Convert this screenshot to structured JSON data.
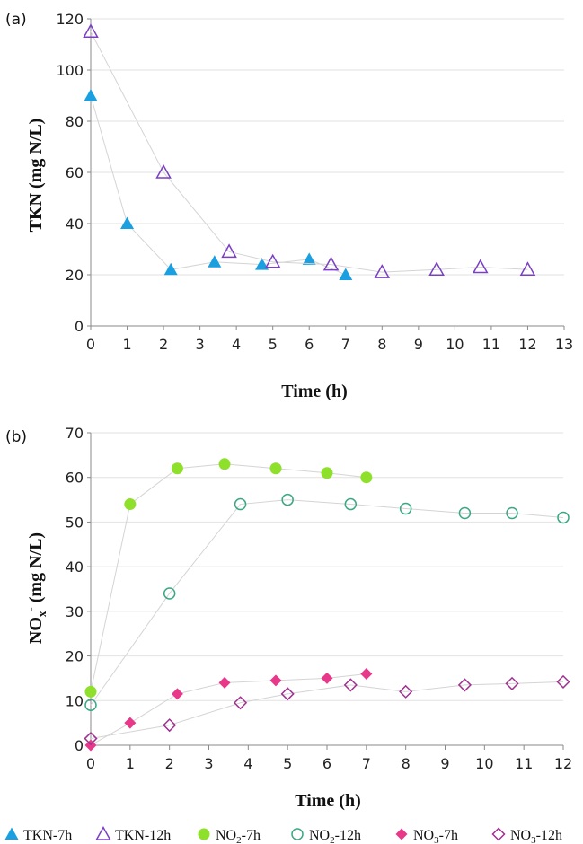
{
  "chart_data": [
    {
      "panel_label": "(a)",
      "type": "scatter",
      "xlabel": "Time (h)",
      "ylabel": "TKN (mg N/L)",
      "xlim": [
        0,
        13
      ],
      "ylim": [
        0,
        120
      ],
      "xticks": [
        "0",
        "1",
        "2",
        "3",
        "4",
        "5",
        "6",
        "7",
        "8",
        "9",
        "10",
        "11",
        "12",
        "13"
      ],
      "yticks": [
        "0",
        "20",
        "40",
        "60",
        "80",
        "100",
        "120"
      ],
      "grid": "horizontal",
      "series": [
        {
          "name": "TKN-7h",
          "marker": "triangle-filled",
          "color": "#1a9fe0",
          "x": [
            0,
            1,
            2.2,
            3.4,
            4.7,
            6,
            7
          ],
          "y": [
            90,
            40,
            22,
            25,
            24,
            26,
            20
          ]
        },
        {
          "name": "TKN-12h",
          "marker": "triangle-open",
          "color": "#7a3fc4",
          "x": [
            0,
            2,
            3.8,
            5,
            6.6,
            8,
            9.5,
            10.7,
            12
          ],
          "y": [
            115,
            60,
            29,
            25,
            24,
            21,
            22,
            23,
            22
          ]
        }
      ]
    },
    {
      "panel_label": "(b)",
      "type": "scatter",
      "xlabel": "Time (h)",
      "ylabel_main": "NO",
      "ylabel_sub": "x",
      "ylabel_sup": "-",
      "ylabel_rest": " (mg N/L)",
      "xlim": [
        0,
        12
      ],
      "ylim": [
        0,
        70
      ],
      "xticks": [
        "0",
        "1",
        "2",
        "3",
        "4",
        "5",
        "6",
        "7",
        "8",
        "9",
        "10",
        "11",
        "12"
      ],
      "yticks": [
        "0",
        "10",
        "20",
        "30",
        "40",
        "50",
        "60",
        "70"
      ],
      "grid": "horizontal",
      "series": [
        {
          "name": "NO2--7h",
          "marker": "circle-filled",
          "color": "#8ee02a",
          "x": [
            0,
            1,
            2.2,
            3.4,
            4.7,
            6,
            7
          ],
          "y": [
            12,
            54,
            62,
            63,
            62,
            61,
            60
          ]
        },
        {
          "name": "NO2--12h",
          "marker": "circle-open",
          "color": "#3aa883",
          "x": [
            0,
            2,
            3.8,
            5,
            6.6,
            8,
            9.5,
            10.7,
            12
          ],
          "y": [
            9,
            34,
            54,
            55,
            54,
            53,
            52,
            52,
            51
          ]
        },
        {
          "name": "NO3--7h",
          "marker": "diamond-filled",
          "color": "#e8388a",
          "x": [
            0,
            1,
            2.2,
            3.4,
            4.7,
            6,
            7
          ],
          "y": [
            0,
            5,
            11.5,
            14,
            14.5,
            15,
            16
          ]
        },
        {
          "name": "NO3--12h",
          "marker": "diamond-open",
          "color": "#a0308f",
          "x": [
            0,
            2,
            3.8,
            5,
            6.6,
            8,
            9.5,
            10.7,
            12
          ],
          "y": [
            1.5,
            4.5,
            9.5,
            11.5,
            13.5,
            12,
            13.5,
            13.8,
            14.2
          ]
        }
      ]
    }
  ],
  "legend": [
    {
      "marker": "triangle-filled",
      "color": "#1a9fe0",
      "main": "TKN-7h",
      "sub": "",
      "rest": ""
    },
    {
      "marker": "triangle-open",
      "color": "#7a3fc4",
      "main": "TKN-12h",
      "sub": "",
      "rest": ""
    },
    {
      "marker": "circle-filled",
      "color": "#8ee02a",
      "main": "NO",
      "sub": "2",
      "rest": "-7h"
    },
    {
      "marker": "circle-open",
      "color": "#3aa883",
      "main": "NO",
      "sub": "2",
      "rest": "-12h"
    },
    {
      "marker": "diamond-filled",
      "color": "#e8388a",
      "main": "NO",
      "sub": "3",
      "rest": "-7h"
    },
    {
      "marker": "diamond-open",
      "color": "#a0308f",
      "main": "NO",
      "sub": "3",
      "rest": "-12h"
    }
  ]
}
